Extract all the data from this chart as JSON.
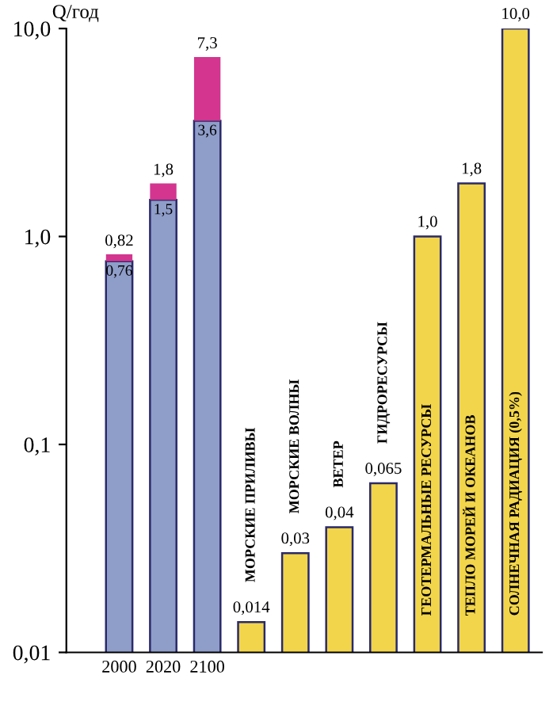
{
  "chart_data": {
    "type": "bar",
    "stacked": true,
    "log": "y",
    "ylabel": "Q/год",
    "categories": [
      "2000",
      "2020",
      "2100",
      "МОРСКИЕ ПРИЛИВЫ",
      "МОРСКИЕ ВОЛНЫ",
      "ВЕТЕР",
      "ГИДРОРЕСУРСЫ",
      "ГЕОТЕРМАЛЬНЫЕ РЕСУРСЫ",
      "ТЕПЛО МОРЕЙ И ОКЕАНОВ",
      "СОЛНЕЧНАЯ РАДИАЦИЯ (0,5%)"
    ],
    "series": [
      {
        "color": "#8f9dc9",
        "values": [
          0.76,
          1.5,
          3.6,
          null,
          null,
          null,
          null,
          null,
          null,
          null
        ],
        "value_labels": [
          "0,76",
          "1,5",
          "3,6",
          null,
          null,
          null,
          null,
          null,
          null,
          null
        ]
      },
      {
        "color": "#d3358f",
        "values": [
          0.06,
          0.3,
          3.7,
          null,
          null,
          null,
          null,
          null,
          null,
          null
        ]
      },
      {
        "color": "#f2d54a",
        "values": [
          null,
          null,
          null,
          0.014,
          0.03,
          0.04,
          0.065,
          1.0,
          1.8,
          10.0
        ],
        "value_labels": [
          null,
          null,
          null,
          "0,014",
          "0,03",
          "0,04",
          "0,065",
          "1,0",
          "1,8",
          "10,0"
        ]
      }
    ],
    "totals": [
      "0,82",
      "1,8",
      "7,3",
      null,
      null,
      null,
      null,
      null,
      null,
      null
    ],
    "ylim": [
      0.01,
      10
    ],
    "yticks": [
      {
        "value": 0.01,
        "label": "0,01"
      },
      {
        "value": 0.1,
        "label": "0,1"
      },
      {
        "value": 1,
        "label": "1,0"
      },
      {
        "value": 10,
        "label": "10,0"
      }
    ],
    "grid": false,
    "legend": false
  }
}
